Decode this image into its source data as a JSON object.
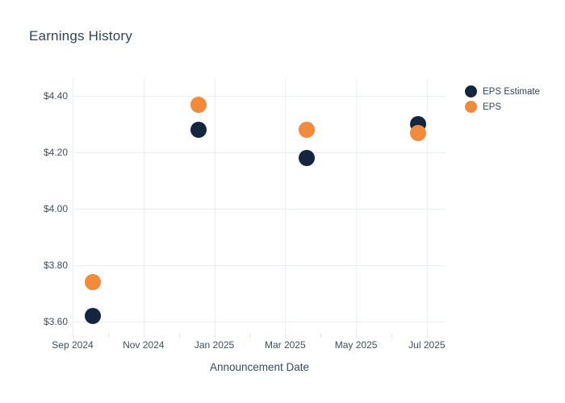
{
  "chart_data": {
    "type": "scatter",
    "title": "Earnings History",
    "xlabel": "Announcement Date",
    "ylabel": "",
    "grid": true,
    "legend_position": "outside-right-top",
    "x_unit": "months since Sep 2024",
    "x_tick_labels": [
      "Sep 2024",
      "Nov 2024",
      "Jan 2025",
      "Mar 2025",
      "May 2025",
      "Jul 2025"
    ],
    "x_tick_months": [
      0,
      2,
      4,
      6,
      8,
      10
    ],
    "x_minor_tick_months": [
      0,
      1,
      2,
      3,
      4,
      5,
      6,
      7,
      8,
      9,
      10
    ],
    "xlim_months": [
      0,
      10.55
    ],
    "y_tick_labels": [
      "$4.40",
      "$4.20",
      "$4.00",
      "$3.80",
      "$3.60"
    ],
    "y_tick_values": [
      4.4,
      4.2,
      4.0,
      3.8,
      3.6
    ],
    "ylim": [
      3.56,
      4.46
    ],
    "series": [
      {
        "name": "EPS Estimate",
        "color": "#13253f",
        "marker": "circle",
        "x_months": [
          0.57,
          3.56,
          6.6,
          9.75
        ],
        "x_approx": [
          "mid Sep 2024",
          "mid Dec 2024",
          "mid Mar 2025",
          "late Jun 2025"
        ],
        "values": [
          3.62,
          4.28,
          4.18,
          4.3
        ]
      },
      {
        "name": "EPS",
        "color": "#f28a3c",
        "marker": "circle",
        "x_months": [
          0.57,
          3.56,
          6.6,
          9.75
        ],
        "x_approx": [
          "mid Sep 2024",
          "mid Dec 2024",
          "mid Mar 2025",
          "late Jun 2025"
        ],
        "values": [
          3.74,
          4.37,
          4.28,
          4.27
        ]
      }
    ],
    "colors": {
      "eps_estimate": "#13253f",
      "eps": "#f28a3c",
      "title_text": "#314459",
      "tick_text": "#3e4e64",
      "gridline": "#e9eef6",
      "tick_mark": "#dde3ed",
      "background": "#ffffff"
    }
  }
}
